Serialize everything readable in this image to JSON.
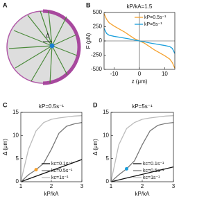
{
  "diagram": {
    "panel": "A",
    "label": "Δ"
  },
  "chart_data": [
    {
      "type": "line",
      "panel": "B",
      "title": "kP/kA=1.5",
      "xlabel": "z (μm)",
      "ylabel": "F (pN)",
      "x": [
        -14,
        -13,
        -12,
        -10,
        -8,
        -6,
        -4,
        -2,
        0,
        2,
        4,
        6,
        8,
        10,
        12,
        13,
        14
      ],
      "series": [
        {
          "name": "kP=0.5s⁻¹",
          "color": "#f5a12e",
          "values": [
            480,
            380,
            320,
            260,
            210,
            160,
            100,
            40,
            0,
            -40,
            -100,
            -160,
            -210,
            -260,
            -320,
            -380,
            -480
          ]
        },
        {
          "name": "kP=5s⁻¹",
          "color": "#1a9fdc",
          "values": [
            220,
            130,
            100,
            80,
            65,
            50,
            35,
            15,
            0,
            -15,
            -35,
            -50,
            -65,
            -80,
            -100,
            -130,
            -220
          ]
        }
      ],
      "xlim": [
        -14,
        14
      ],
      "xticks": [
        -10,
        0,
        10
      ],
      "ylim": [
        -500,
        500
      ],
      "yticks": [
        -500,
        -250,
        0,
        250,
        500
      ],
      "zero_lines": true,
      "legend": "upper right"
    },
    {
      "type": "line",
      "panel": "C",
      "title": "kP=0.5s⁻¹",
      "xlabel": "kP/kA",
      "ylabel": "Δ (μm)",
      "x": [
        1,
        1.25,
        1.5,
        1.75,
        2,
        2.25,
        2.5,
        2.75,
        3
      ],
      "series": [
        {
          "name": "kc=0.1s⁻¹",
          "color": "#111111",
          "values": [
            0,
            0.6,
            1.2,
            1.8,
            2.4,
            3.0,
            3.6,
            4.2,
            4.8
          ]
        },
        {
          "name": "kc=0.5s⁻¹",
          "color": "#777777",
          "values": [
            0,
            1.5,
            2.6,
            4,
            7,
            10.5,
            12,
            12.5,
            12.8
          ]
        },
        {
          "name": "kc=1s⁻¹",
          "color": "#bbbbbb",
          "values": [
            0,
            7,
            11,
            12.8,
            13.5,
            13.8,
            14,
            14.2,
            14.3
          ]
        }
      ],
      "markers": [
        {
          "x": 1.5,
          "y": 2.6,
          "color": "#f5a12e"
        }
      ],
      "xlim": [
        1,
        3
      ],
      "xticks": [
        1,
        2,
        3
      ],
      "ylim": [
        0,
        15
      ],
      "yticks": [
        0,
        5,
        10,
        15
      ],
      "legend": "lower right"
    },
    {
      "type": "line",
      "panel": "D",
      "title": "kP=5s⁻¹",
      "xlabel": "kP/kA",
      "ylabel": "Δ (μm)",
      "x": [
        1,
        1.25,
        1.5,
        1.75,
        2,
        2.25,
        2.5,
        2.75,
        3
      ],
      "series": [
        {
          "name": "kc=0.1s⁻¹",
          "color": "#111111",
          "values": [
            0,
            0.4,
            0.8,
            1.2,
            1.6,
            2.0,
            2.4,
            2.8,
            3.2
          ]
        },
        {
          "name": "kc=0.5s⁻¹",
          "color": "#777777",
          "values": [
            0,
            1.5,
            2.8,
            4.5,
            8,
            11,
            12.2,
            12.6,
            12.8
          ]
        },
        {
          "name": "kc=1s⁻¹",
          "color": "#bbbbbb",
          "values": [
            0,
            8,
            11.5,
            12.8,
            13.5,
            13.8,
            14,
            14.2,
            14.3
          ]
        }
      ],
      "markers": [
        {
          "x": 1.5,
          "y": 2.8,
          "color": "#1a9fdc"
        }
      ],
      "xlim": [
        1,
        3
      ],
      "xticks": [
        1,
        2,
        3
      ],
      "ylim": [
        0,
        15
      ],
      "yticks": [
        0,
        5,
        10,
        15
      ],
      "legend": "lower right"
    }
  ]
}
